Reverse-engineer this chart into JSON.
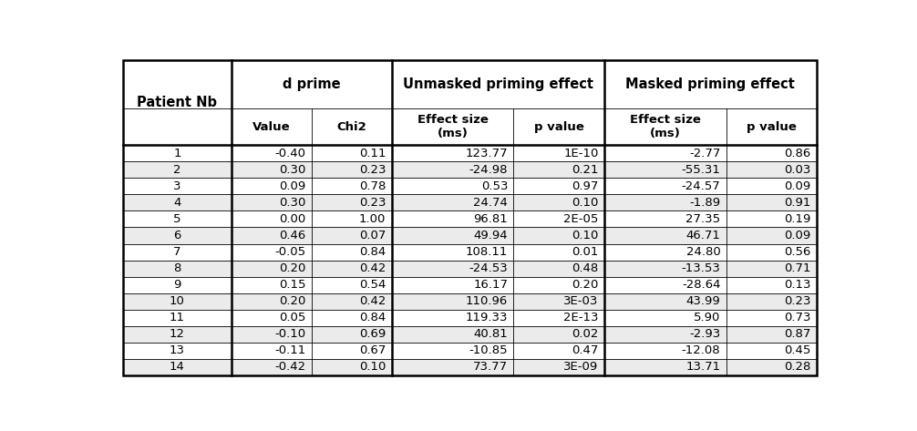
{
  "col_headers": [
    "Value",
    "Chi2",
    "Effect size\n(ms)",
    "p value",
    "Effect size\n(ms)",
    "p value"
  ],
  "row_header": "Patient Nb",
  "group_headers": [
    "d prime",
    "Unmasked priming effect",
    "Masked priming effect"
  ],
  "rows": [
    [
      "1",
      "-0.40",
      "0.11",
      "123.77",
      "1E-10",
      "-2.77",
      "0.86"
    ],
    [
      "2",
      "0.30",
      "0.23",
      "-24.98",
      "0.21",
      "-55.31",
      "0.03"
    ],
    [
      "3",
      "0.09",
      "0.78",
      "0.53",
      "0.97",
      "-24.57",
      "0.09"
    ],
    [
      "4",
      "0.30",
      "0.23",
      "24.74",
      "0.10",
      "-1.89",
      "0.91"
    ],
    [
      "5",
      "0.00",
      "1.00",
      "96.81",
      "2E-05",
      "27.35",
      "0.19"
    ],
    [
      "6",
      "0.46",
      "0.07",
      "49.94",
      "0.10",
      "46.71",
      "0.09"
    ],
    [
      "7",
      "-0.05",
      "0.84",
      "108.11",
      "0.01",
      "24.80",
      "0.56"
    ],
    [
      "8",
      "0.20",
      "0.42",
      "-24.53",
      "0.48",
      "-13.53",
      "0.71"
    ],
    [
      "9",
      "0.15",
      "0.54",
      "16.17",
      "0.20",
      "-28.64",
      "0.13"
    ],
    [
      "10",
      "0.20",
      "0.42",
      "110.96",
      "3E-03",
      "43.99",
      "0.23"
    ],
    [
      "11",
      "0.05",
      "0.84",
      "119.33",
      "2E-13",
      "5.90",
      "0.73"
    ],
    [
      "12",
      "-0.10",
      "0.69",
      "40.81",
      "0.02",
      "-2.93",
      "0.87"
    ],
    [
      "13",
      "-0.11",
      "0.67",
      "-10.85",
      "0.47",
      "-12.08",
      "0.45"
    ],
    [
      "14",
      "-0.42",
      "0.10",
      "73.77",
      "3E-09",
      "13.71",
      "0.28"
    ]
  ],
  "bg_white": "#ffffff",
  "bg_alt": "#ebebeb",
  "border_color": "#000000",
  "text_color": "#000000",
  "col_widths_rel": [
    1.55,
    1.15,
    1.15,
    1.75,
    1.3,
    1.75,
    1.3
  ],
  "fig_width": 10.06,
  "fig_height": 4.73
}
